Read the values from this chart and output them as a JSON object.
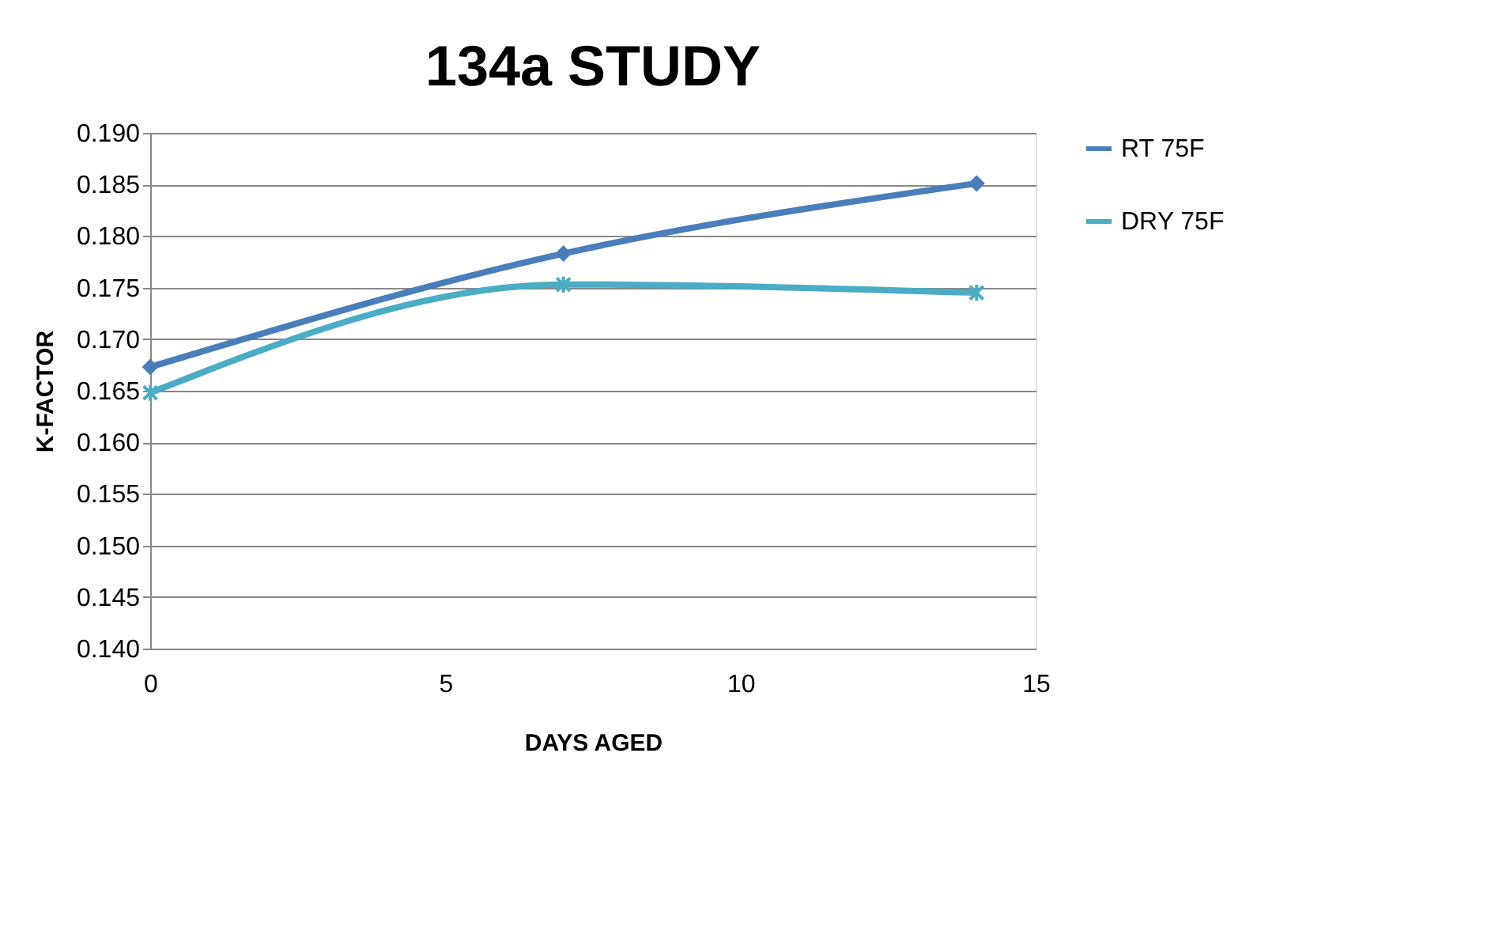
{
  "chart_data": {
    "type": "line",
    "title": "134a STUDY",
    "xlabel": "DAYS AGED",
    "ylabel": "K-FACTOR",
    "x": [
      0,
      7,
      14
    ],
    "series": [
      {
        "name": "RT 75F",
        "color": "#4a7ebb",
        "marker": "diamond",
        "values": [
          0.1673,
          0.1783,
          0.1851
        ]
      },
      {
        "name": "DRY 75F",
        "color": "#4bacc6",
        "marker": "cross",
        "values": [
          0.1648,
          0.1753,
          0.1745
        ]
      }
    ],
    "xlim": [
      0,
      15
    ],
    "xticks": [
      0,
      5,
      10,
      15
    ],
    "ylim": [
      0.14,
      0.19
    ],
    "yticks": [
      {
        "value": 0.14,
        "label": "0.140"
      },
      {
        "value": 0.145,
        "label": "0.145"
      },
      {
        "value": 0.15,
        "label": "0.150"
      },
      {
        "value": 0.155,
        "label": "0.155"
      },
      {
        "value": 0.16,
        "label": "0.160"
      },
      {
        "value": 0.165,
        "label": "0.165"
      },
      {
        "value": 0.17,
        "label": "0.170"
      },
      {
        "value": 0.175,
        "label": "0.175"
      },
      {
        "value": 0.18,
        "label": "0.180"
      },
      {
        "value": 0.185,
        "label": "0.185"
      },
      {
        "value": 0.19,
        "label": "0.190"
      }
    ],
    "grid": "y",
    "legend": "right"
  }
}
